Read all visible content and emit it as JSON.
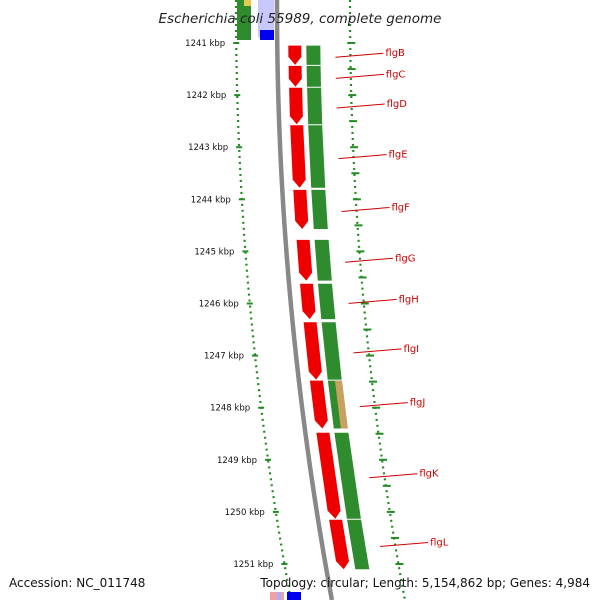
{
  "title": "Escherichia coli 55989, complete genome",
  "accession": "Accession: NC_011748",
  "summary": "Topology: circular; Length: 5,154,862 bp; Genes: 4,984",
  "colors": {
    "forward_cds": "#ee0000",
    "cog_green": "#2e8b2e",
    "cog_tan": "#c8a060",
    "backbone": "#888888",
    "tick": "#228b22",
    "label": "#cc0000",
    "blue": "#0000ee"
  },
  "ruler": [
    {
      "label": "1241 kbp",
      "kbp": 1241
    },
    {
      "label": "1242 kbp",
      "kbp": 1242
    },
    {
      "label": "1243 kbp",
      "kbp": 1243
    },
    {
      "label": "1244 kbp",
      "kbp": 1244
    },
    {
      "label": "1245 kbp",
      "kbp": 1245
    },
    {
      "label": "1246 kbp",
      "kbp": 1246
    },
    {
      "label": "1247 kbp",
      "kbp": 1247
    },
    {
      "label": "1248 kbp",
      "kbp": 1248
    },
    {
      "label": "1249 kbp",
      "kbp": 1249
    },
    {
      "label": "1250 kbp",
      "kbp": 1250
    },
    {
      "label": "1251 kbp",
      "kbp": 1251
    }
  ],
  "genes": [
    {
      "name": "flgB",
      "start_kbp": 1241.05,
      "end_kbp": 1241.42
    },
    {
      "name": "flgC",
      "start_kbp": 1241.44,
      "end_kbp": 1241.84
    },
    {
      "name": "flgD",
      "start_kbp": 1241.86,
      "end_kbp": 1242.56
    },
    {
      "name": "flgE",
      "start_kbp": 1242.58,
      "end_kbp": 1243.78
    },
    {
      "name": "flgF",
      "start_kbp": 1243.82,
      "end_kbp": 1244.57
    },
    {
      "name": "flgG",
      "start_kbp": 1244.78,
      "end_kbp": 1245.56
    },
    {
      "name": "flgH",
      "start_kbp": 1245.62,
      "end_kbp": 1246.3
    },
    {
      "name": "flgI",
      "start_kbp": 1246.36,
      "end_kbp": 1247.46
    },
    {
      "name": "flgJ",
      "start_kbp": 1247.48,
      "end_kbp": 1248.4
    },
    {
      "name": "flgK",
      "start_kbp": 1248.48,
      "end_kbp": 1250.13
    },
    {
      "name": "flgL",
      "start_kbp": 1250.15,
      "end_kbp": 1251.1
    }
  ]
}
